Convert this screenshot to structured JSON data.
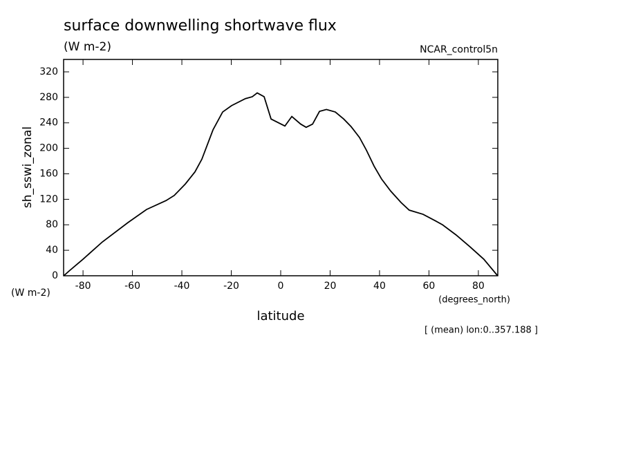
{
  "chart_data": {
    "type": "line",
    "title": "surface downwelling shortwave flux",
    "units": "(W m-2)",
    "dataset": "NCAR_control5n",
    "y_label": "sh_sswi_zonal",
    "y_units": "(W m-2)",
    "x_units": "(degrees_north)",
    "x_label": "latitude",
    "note": "[ (mean) lon:0..357.188 ]",
    "x": [
      -87.8,
      -85.6,
      -80,
      -72.2,
      -61.8,
      -54.3,
      -46.4,
      -43.1,
      -38.6,
      -34.7,
      -31.9,
      -27.4,
      -23.5,
      -19.9,
      -14.3,
      -11.5,
      -9.5,
      -6.7,
      -3.9,
      1.7,
      4.5,
      8.1,
      10.3,
      12.9,
      15.7,
      18.5,
      22.1,
      25.5,
      28.5,
      31.9,
      34.7,
      37.8,
      40.8,
      44.5,
      48.7,
      52,
      57.6,
      62.7,
      65.5,
      71,
      76.6,
      82.2,
      87.8
    ],
    "series": [
      {
        "color": "#000000",
        "values": [
          0,
          7.6,
          26,
          53,
          83.5,
          104,
          118,
          126,
          144,
          163,
          183,
          229,
          257,
          267,
          278,
          281,
          287,
          281,
          246,
          235,
          250,
          238,
          233,
          238,
          258,
          261,
          257,
          246,
          234,
          217,
          197,
          172,
          152,
          133,
          115,
          103,
          96.5,
          86,
          80,
          64,
          45.5,
          26,
          0
        ]
      }
    ],
    "xlim": [
      -87.86,
      87.86
    ],
    "xticks": [
      -80,
      -60,
      -40,
      -20,
      0,
      20,
      40,
      60,
      80
    ],
    "ylim": [
      0,
      339.5
    ],
    "yticks": [
      0,
      40,
      80,
      120,
      160,
      200,
      240,
      280,
      320
    ]
  }
}
